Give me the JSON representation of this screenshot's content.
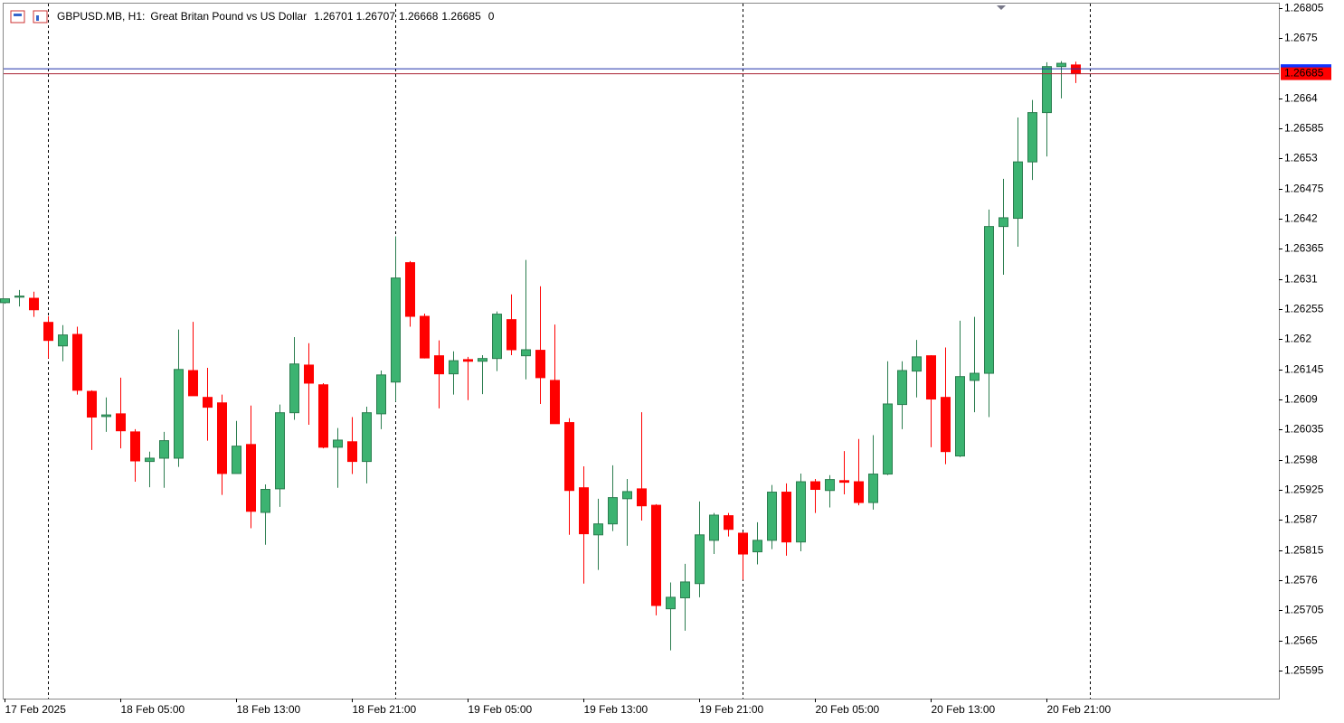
{
  "chart_data": {
    "type": "candlestick",
    "title": "GBPUSD.MB, H1:",
    "subtitle": "Great Britan Pound vs US Dollar",
    "volume": 0,
    "categories": [
      "17 Feb 2025",
      null,
      null,
      null,
      null,
      null,
      null,
      null,
      "18 Feb 05:00",
      null,
      null,
      null,
      null,
      null,
      null,
      null,
      "18 Feb 13:00",
      null,
      null,
      null,
      null,
      null,
      null,
      null,
      "18 Feb 21:00",
      null,
      null,
      null,
      null,
      null,
      null,
      null,
      "19 Feb 05:00",
      null,
      null,
      null,
      null,
      null,
      null,
      null,
      "19 Feb 13:00",
      null,
      null,
      null,
      null,
      null,
      null,
      null,
      "19 Feb 21:00",
      null,
      null,
      null,
      null,
      null,
      null,
      null,
      "20 Feb 05:00",
      null,
      null,
      null,
      null,
      null,
      null,
      null,
      "20 Feb 13:00",
      null,
      null,
      null,
      null,
      null,
      null,
      null,
      "20 Feb 21:00",
      null,
      null
    ],
    "open": [
      1.26267,
      1.26277,
      1.26275,
      1.26231,
      1.26188,
      1.26209,
      1.26105,
      1.26059,
      1.26064,
      1.26031,
      1.25977,
      1.25983,
      1.25983,
      1.26143,
      1.26094,
      1.26084,
      1.25955,
      1.26008,
      1.25884,
      1.25927,
      1.26066,
      1.26153,
      1.26117,
      1.26003,
      1.26013,
      1.25977,
      1.26064,
      1.26122,
      1.2634,
      1.26242,
      1.2617,
      1.26137,
      1.26163,
      1.2616,
      1.26165,
      1.26236,
      1.2617,
      1.2618,
      1.26125,
      1.26048,
      1.25929,
      1.25843,
      1.25863,
      1.25909,
      1.25927,
      1.25897,
      1.25708,
      1.25728,
      1.25754,
      1.25833,
      1.25878,
      1.25846,
      1.25812,
      1.25833,
      1.25921,
      1.2583,
      1.2594,
      1.25924,
      1.25942,
      1.2594,
      1.25902,
      1.25954,
      1.26081,
      1.26142,
      1.2617,
      1.26094,
      1.25987,
      1.26125,
      1.26138,
      1.26406,
      1.26421,
      1.26524,
      1.26614,
      1.26698,
      1.26701
    ],
    "high": [
      1.26274,
      1.2629,
      1.26287,
      1.26242,
      1.26226,
      1.26223,
      1.26107,
      1.26094,
      1.2613,
      1.26036,
      1.25995,
      1.26031,
      1.26218,
      1.26232,
      1.26148,
      1.26099,
      1.26051,
      1.26079,
      1.25935,
      1.26081,
      1.26204,
      1.26193,
      1.2612,
      1.26038,
      1.26058,
      1.26077,
      1.26143,
      1.26388,
      1.26343,
      1.26247,
      1.26198,
      1.26178,
      1.26168,
      1.26171,
      1.26251,
      1.26282,
      1.26345,
      1.26297,
      1.26227,
      1.26056,
      1.25968,
      1.25909,
      1.2597,
      1.25945,
      1.26067,
      1.25899,
      1.25756,
      1.2579,
      1.25904,
      1.25883,
      1.25883,
      1.25848,
      1.25866,
      1.25934,
      1.25937,
      1.25955,
      1.25945,
      1.25952,
      1.25996,
      1.26018,
      1.26025,
      1.2616,
      1.2616,
      1.26199,
      1.26171,
      1.26185,
      1.26234,
      1.26241,
      1.26437,
      1.26493,
      1.26605,
      1.26637,
      1.26706,
      1.26708,
      1.26707
    ],
    "low": [
      1.26265,
      1.2626,
      1.26241,
      1.26165,
      1.2616,
      1.26099,
      1.25998,
      1.26031,
      1.26001,
      1.2594,
      1.2593,
      1.25929,
      1.25967,
      1.26097,
      1.26015,
      1.25916,
      1.25955,
      1.25855,
      1.25825,
      1.25894,
      1.26053,
      1.26044,
      1.26001,
      1.25929,
      1.25954,
      1.25937,
      1.26036,
      1.26086,
      1.26223,
      1.26165,
      1.26074,
      1.26099,
      1.26089,
      1.261,
      1.26142,
      1.26171,
      1.26127,
      1.26082,
      1.26046,
      1.25843,
      1.25754,
      1.25779,
      1.2585,
      1.25823,
      1.25869,
      1.25696,
      1.25632,
      1.25668,
      1.25729,
      1.25808,
      1.2584,
      1.25761,
      1.25789,
      1.25817,
      1.25805,
      1.25813,
      1.25883,
      1.25893,
      1.25917,
      1.25897,
      1.25889,
      1.25952,
      1.26036,
      1.26094,
      1.26003,
      1.25972,
      1.25985,
      1.26067,
      1.26058,
      1.26318,
      1.26369,
      1.26491,
      1.26534,
      1.2664,
      1.26668
    ],
    "close": [
      1.26274,
      1.26279,
      1.26254,
      1.26198,
      1.26208,
      1.26107,
      1.26058,
      1.26062,
      1.26033,
      1.25978,
      1.25983,
      1.26015,
      1.26145,
      1.26097,
      1.26076,
      1.25955,
      1.26005,
      1.25886,
      1.25926,
      1.26066,
      1.26155,
      1.2612,
      1.26003,
      1.26016,
      1.25977,
      1.26066,
      1.26135,
      1.26312,
      1.26242,
      1.26166,
      1.26137,
      1.26161,
      1.2616,
      1.26165,
      1.26246,
      1.26181,
      1.26181,
      1.2613,
      1.26046,
      1.25924,
      1.25845,
      1.25863,
      1.25911,
      1.25922,
      1.25896,
      1.25714,
      1.25729,
      1.25757,
      1.25843,
      1.25879,
      1.25853,
      1.25808,
      1.25833,
      1.25921,
      1.2583,
      1.2594,
      1.25926,
      1.25944,
      1.25939,
      1.25902,
      1.25954,
      1.26082,
      1.26143,
      1.26168,
      1.26091,
      1.25995,
      1.26132,
      1.26138,
      1.26406,
      1.26422,
      1.26524,
      1.26614,
      1.26698,
      1.26704,
      1.26685
    ],
    "up_color": "#3cb371",
    "down_color": "#ff0000",
    "bid": 1.26685,
    "ask": 1.26694,
    "ylim": [
      1.25544,
      1.26813
    ],
    "yticks": [
      1.26805,
      1.2675,
      1.2664,
      1.26585,
      1.2653,
      1.26475,
      1.2642,
      1.26365,
      1.2631,
      1.26255,
      1.262,
      1.26145,
      1.2609,
      1.26035,
      1.2598,
      1.25925,
      1.2587,
      1.25815,
      1.2576,
      1.25705,
      1.2565,
      1.25595
    ]
  }
}
